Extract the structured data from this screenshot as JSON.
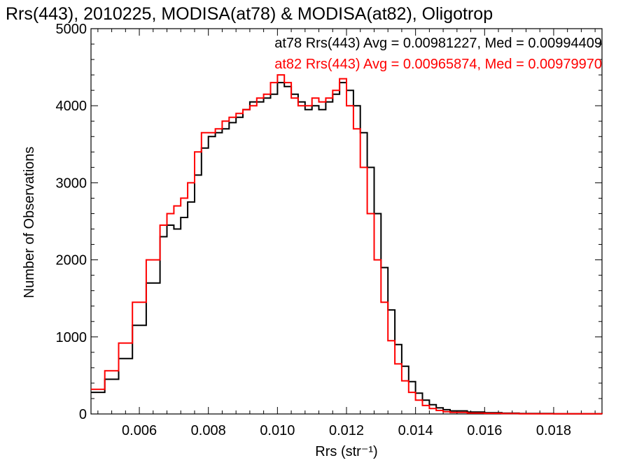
{
  "chart_data": {
    "type": "line",
    "title": "Rrs(443), 2010225, MODISA(at78) & MODISA(at82), Oligotrop",
    "xlabel": "Rrs (str⁻¹)",
    "ylabel": "Number of Observations",
    "xlim": [
      0.0046,
      0.0194
    ],
    "ylim": [
      0,
      5000
    ],
    "xticks": [
      0.006,
      0.008,
      0.01,
      0.012,
      0.014,
      0.016,
      0.018
    ],
    "xtick_labels": [
      "0.006",
      "0.008",
      "0.010",
      "0.012",
      "0.014",
      "0.016",
      "0.018"
    ],
    "yticks": [
      0,
      1000,
      2000,
      3000,
      4000,
      5000
    ],
    "ytick_labels": [
      "0",
      "1000",
      "2000",
      "3000",
      "4000",
      "5000"
    ],
    "grid": false,
    "annotations": [
      {
        "text": "at78 Rrs(443) Avg = 0.00981227, Med = 0.00994409",
        "color": "#000000"
      },
      {
        "text": "at82 Rrs(443) Avg = 0.00965874, Med = 0.00979970",
        "color": "#ff0000"
      }
    ],
    "series": [
      {
        "color": "#000000",
        "x": [
          0.0046,
          0.005,
          0.0054,
          0.0058,
          0.0062,
          0.0066,
          0.0068,
          0.007,
          0.0072,
          0.0074,
          0.0076,
          0.0078,
          0.008,
          0.0082,
          0.0084,
          0.0086,
          0.0088,
          0.009,
          0.0092,
          0.0094,
          0.0096,
          0.0098,
          0.01,
          0.0102,
          0.0104,
          0.0106,
          0.0108,
          0.011,
          0.0112,
          0.0114,
          0.0116,
          0.0118,
          0.012,
          0.0122,
          0.0124,
          0.0126,
          0.0128,
          0.013,
          0.0132,
          0.0134,
          0.0136,
          0.0138,
          0.014,
          0.0142,
          0.0144,
          0.0146,
          0.0148,
          0.015,
          0.0155,
          0.016,
          0.0165,
          0.017,
          0.018,
          0.0194
        ],
        "y": [
          280,
          450,
          720,
          1150,
          1700,
          2300,
          2450,
          2400,
          2550,
          2750,
          3100,
          3450,
          3600,
          3650,
          3700,
          3780,
          3850,
          3950,
          4050,
          4050,
          4100,
          4150,
          4300,
          4250,
          4150,
          4050,
          3950,
          4000,
          3950,
          4050,
          4150,
          4300,
          4200,
          4000,
          3650,
          3200,
          2600,
          1900,
          1350,
          900,
          620,
          420,
          270,
          180,
          120,
          80,
          55,
          40,
          25,
          15,
          10,
          5,
          3,
          0
        ]
      },
      {
        "color": "#ff0000",
        "x": [
          0.0046,
          0.005,
          0.0054,
          0.0058,
          0.0062,
          0.0066,
          0.0068,
          0.007,
          0.0072,
          0.0074,
          0.0076,
          0.0078,
          0.008,
          0.0082,
          0.0084,
          0.0086,
          0.0088,
          0.009,
          0.0092,
          0.0094,
          0.0096,
          0.0098,
          0.01,
          0.0102,
          0.0104,
          0.0106,
          0.0108,
          0.011,
          0.0112,
          0.0114,
          0.0116,
          0.0118,
          0.012,
          0.0122,
          0.0124,
          0.0126,
          0.0128,
          0.013,
          0.0132,
          0.0134,
          0.0136,
          0.0138,
          0.014,
          0.0142,
          0.0144,
          0.0146,
          0.0148,
          0.015,
          0.0155,
          0.016,
          0.0165,
          0.017,
          0.018,
          0.0194
        ],
        "y": [
          320,
          560,
          920,
          1450,
          2000,
          2450,
          2600,
          2700,
          2800,
          3000,
          3400,
          3650,
          3650,
          3700,
          3800,
          3850,
          3900,
          3950,
          4000,
          4100,
          4150,
          4300,
          4400,
          4300,
          4100,
          4000,
          4000,
          4100,
          4050,
          4100,
          4200,
          4350,
          4000,
          3700,
          3200,
          2600,
          2000,
          1450,
          950,
          650,
          430,
          280,
          180,
          110,
          70,
          45,
          30,
          20,
          12,
          8,
          5,
          3,
          2,
          0
        ]
      }
    ]
  }
}
